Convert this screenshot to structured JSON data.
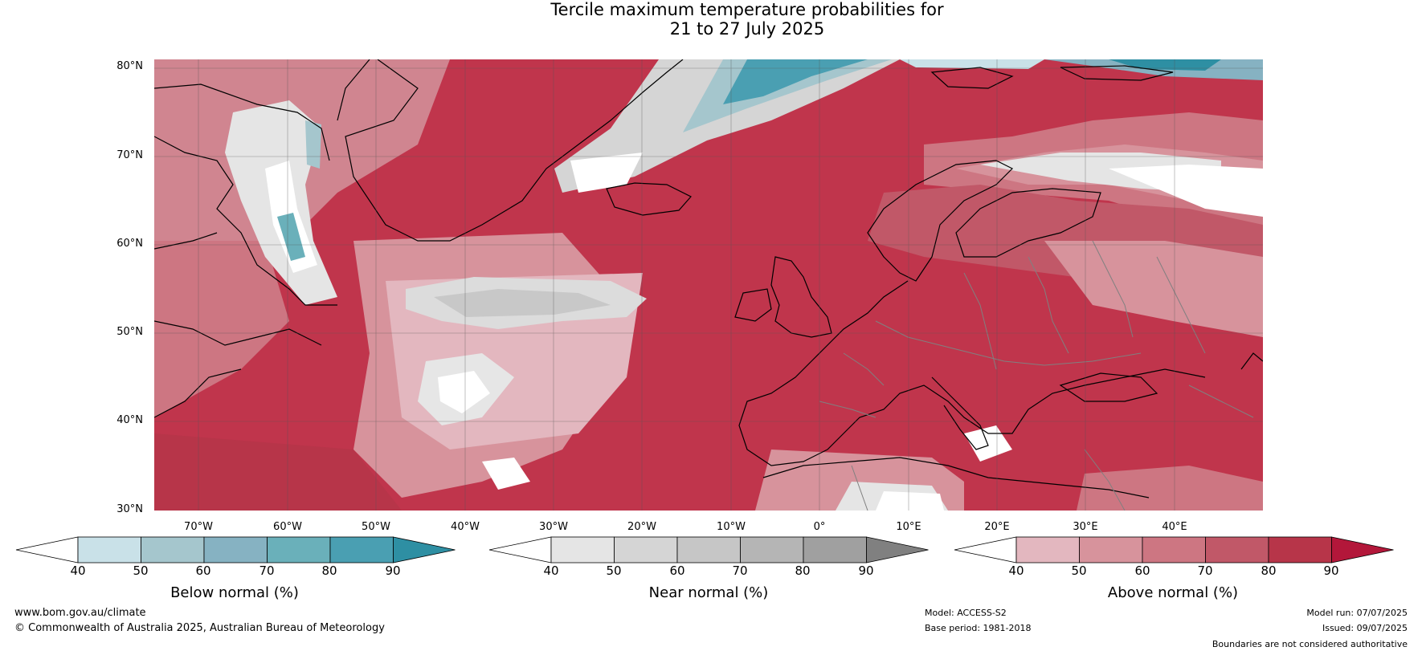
{
  "title": {
    "line1": "Tercile maximum temperature probabilities for",
    "line2": "21 to 27 July 2025"
  },
  "map": {
    "lat_labels": [
      "80°N",
      "70°N",
      "60°N",
      "50°N",
      "40°N",
      "30°N"
    ],
    "lon_labels": [
      "70°W",
      "60°W",
      "50°W",
      "40°W",
      "30°W",
      "20°W",
      "10°W",
      "0°",
      "10°E",
      "20°E",
      "30°E",
      "40°E"
    ],
    "colors": {
      "ocean_background": "#c0354c",
      "coastline": "#000000",
      "borders": "#808080"
    }
  },
  "legends": [
    {
      "title": "Below normal (%)",
      "ticks": [
        "40",
        "50",
        "60",
        "70",
        "80",
        "90"
      ],
      "colors": [
        "#ffffff",
        "#c9e1e8",
        "#a5c6cd",
        "#86b2c2",
        "#6ab0ba",
        "#4a9fb2",
        "#2e8fa3"
      ]
    },
    {
      "title": "Near normal (%)",
      "ticks": [
        "40",
        "50",
        "60",
        "70",
        "80",
        "90"
      ],
      "colors": [
        "#ffffff",
        "#e5e5e5",
        "#d5d5d5",
        "#c6c6c6",
        "#b5b5b5",
        "#a0a0a0",
        "#808080"
      ]
    },
    {
      "title": "Above normal (%)",
      "ticks": [
        "40",
        "50",
        "60",
        "70",
        "80",
        "90"
      ],
      "colors": [
        "#ffffff",
        "#e3b7bf",
        "#d7939c",
        "#cd7682",
        "#c15868",
        "#b73549",
        "#b3173a"
      ]
    }
  ],
  "footer": {
    "website": "www.bom.gov.au/climate",
    "copyright": "© Commonwealth of Australia 2025, Australian Bureau of Meteorology",
    "model": "Model: ACCESS-S2",
    "base_period": "Base period: 1981-2018",
    "model_run": "Model run: 07/07/2025",
    "issued": "Issued: 09/07/2025",
    "disclaimer": "Boundaries are not considered authoritative"
  }
}
